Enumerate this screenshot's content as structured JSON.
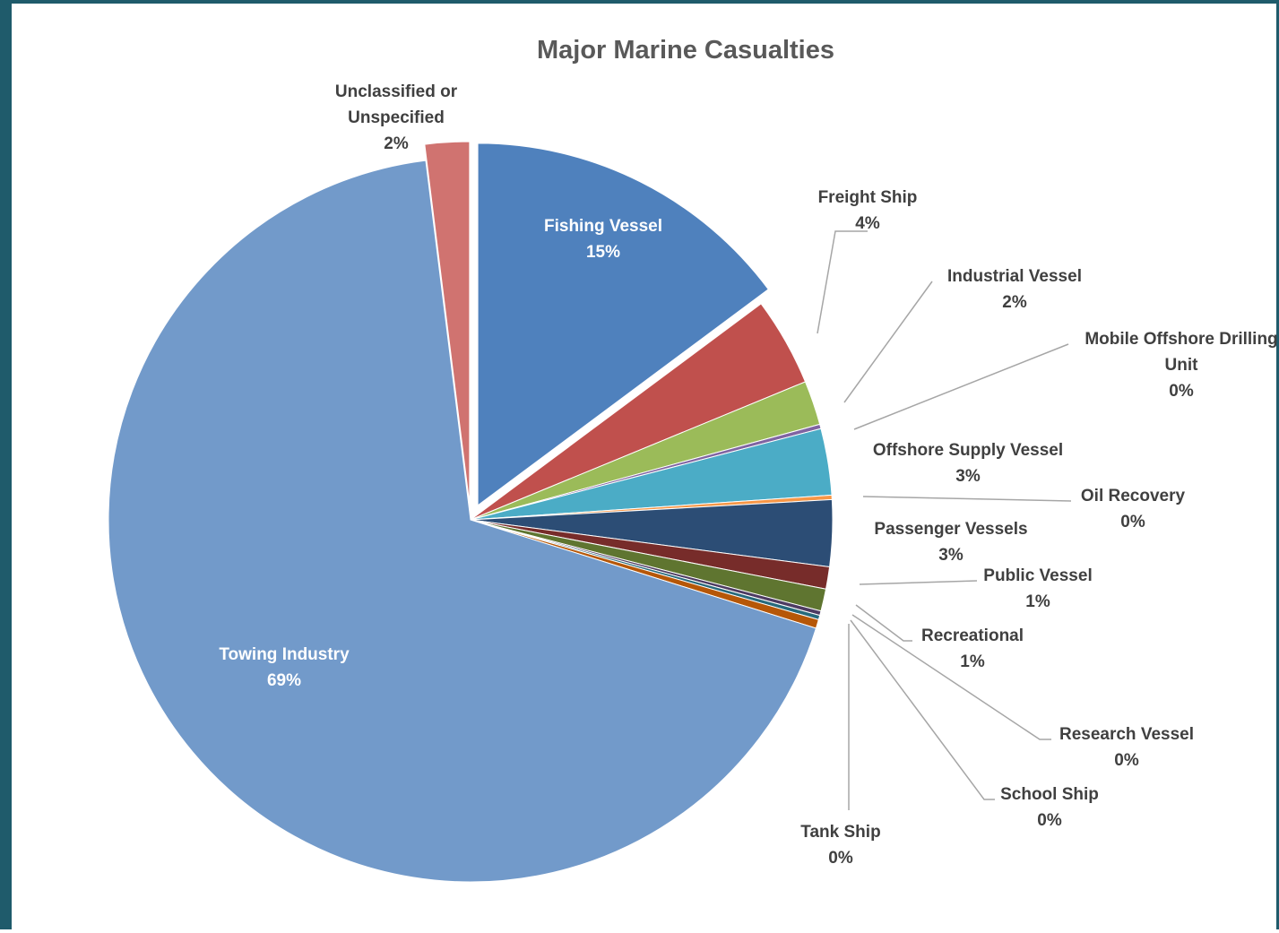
{
  "chart_data": {
    "type": "pie",
    "title": "Major Marine Casualties",
    "slices": [
      {
        "label": [
          "Fishing Vessel"
        ],
        "value": 15,
        "pct": "15%",
        "color": "#4f81bd"
      },
      {
        "label": [
          "Freight Ship"
        ],
        "value": 4,
        "pct": "4%",
        "color": "#c0504d"
      },
      {
        "label": [
          "Industrial Vessel"
        ],
        "value": 2,
        "pct": "2%",
        "color": "#9bbb59"
      },
      {
        "label": [
          "Mobile Offshore Drilling",
          "Unit"
        ],
        "value": 0.2,
        "pct": "0%",
        "color": "#8064a2"
      },
      {
        "label": [
          "Offshore Supply Vessel"
        ],
        "value": 3,
        "pct": "3%",
        "color": "#4bacc6"
      },
      {
        "label": [
          "Oil Recovery"
        ],
        "value": 0.2,
        "pct": "0%",
        "color": "#f79646"
      },
      {
        "label": [
          "Passenger Vessels"
        ],
        "value": 3,
        "pct": "3%",
        "color": "#2c4d75"
      },
      {
        "label": [
          "Public Vessel"
        ],
        "value": 1,
        "pct": "1%",
        "color": "#772c2a"
      },
      {
        "label": [
          "Recreational"
        ],
        "value": 1,
        "pct": "1%",
        "color": "#5f7530"
      },
      {
        "label": [
          "Research Vessel"
        ],
        "value": 0.2,
        "pct": "0%",
        "color": "#4d3b62"
      },
      {
        "label": [
          "School Ship"
        ],
        "value": 0.2,
        "pct": "0%",
        "color": "#276a7c"
      },
      {
        "label": [
          "Tank Ship"
        ],
        "value": 0.4,
        "pct": "0%",
        "color": "#b65708"
      },
      {
        "label": [
          "Towing Industry"
        ],
        "value": 69,
        "pct": "69%",
        "color": "#729aca"
      },
      {
        "label": [
          "Unclassified or",
          "Unspecified"
        ],
        "value": 2,
        "pct": "2%",
        "color": "#d07370"
      }
    ],
    "legend": "none"
  }
}
